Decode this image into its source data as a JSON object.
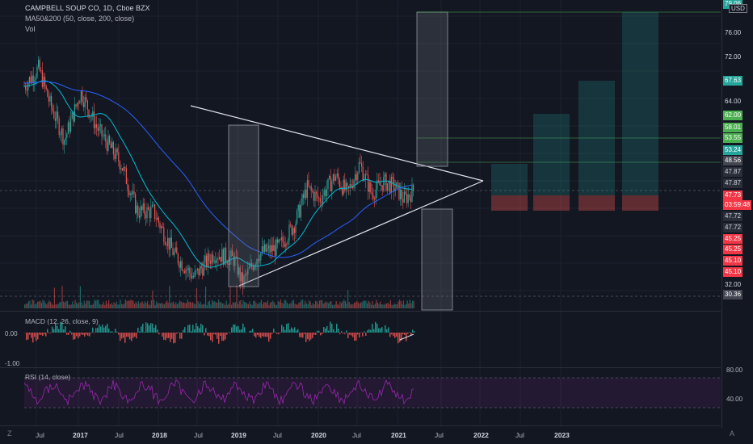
{
  "chart_header": {
    "symbol_line": "CAMPBELL SOUP CO, 1D, Cboe BZX",
    "ma_line": "MA50&200 (50, close, 200, close)",
    "vol_line": "Vol"
  },
  "currency": "USD",
  "price_axis": {
    "labels": [
      {
        "text": "79.06",
        "style": "green"
      },
      {
        "text": "76.00",
        "style": "plain"
      },
      {
        "text": "72.00",
        "style": "plain"
      },
      {
        "text": "67.63",
        "style": "green"
      },
      {
        "text": "64.00",
        "style": "plain"
      },
      {
        "text": "62.00",
        "style": "brightgreen"
      },
      {
        "text": "58.01",
        "style": "brightgreen"
      },
      {
        "text": "53.55",
        "style": "brightgreen"
      },
      {
        "text": "53.24",
        "style": "green"
      },
      {
        "text": "48.56",
        "style": "gray"
      },
      {
        "text": "47.87",
        "style": "dark"
      },
      {
        "text": "47.87",
        "style": "dark"
      },
      {
        "text": "47.73",
        "style": "red"
      },
      {
        "text": "03:59:48",
        "style": "red"
      },
      {
        "text": "47.72",
        "style": "dark"
      },
      {
        "text": "47.72",
        "style": "dark"
      },
      {
        "text": "45.25",
        "style": "red"
      },
      {
        "text": "45.25",
        "style": "red"
      },
      {
        "text": "45.10",
        "style": "red"
      },
      {
        "text": "45.10",
        "style": "red"
      },
      {
        "text": "32.00",
        "style": "plain"
      },
      {
        "text": "30.36",
        "style": "gray"
      }
    ]
  },
  "macd": {
    "legend": "MACD (12, 26, close, 9)",
    "axis_labels": [
      "0.00",
      "-1.00"
    ]
  },
  "rsi": {
    "legend": "RSI (14, close)",
    "axis_labels": [
      "80.00",
      "40.00"
    ]
  },
  "time_axis": {
    "labels": [
      {
        "text": "Jul",
        "bold": false
      },
      {
        "text": "2017",
        "bold": true
      },
      {
        "text": "Jul",
        "bold": false
      },
      {
        "text": "2018",
        "bold": true
      },
      {
        "text": "Jul",
        "bold": false
      },
      {
        "text": "2019",
        "bold": true
      },
      {
        "text": "Jul",
        "bold": false
      },
      {
        "text": "2020",
        "bold": true
      },
      {
        "text": "Jul",
        "bold": false
      },
      {
        "text": "2021",
        "bold": true
      },
      {
        "text": "Jul",
        "bold": false
      },
      {
        "text": "2022",
        "bold": true
      },
      {
        "text": "Jul",
        "bold": false
      },
      {
        "text": "2023",
        "bold": true
      }
    ]
  },
  "corner_labels": {
    "left": "Z",
    "right": "A"
  },
  "chart_data": {
    "type": "line",
    "title": "CAMPBELL SOUP CO, 1D, Cboe BZX",
    "price_ylim": [
      29,
      81
    ],
    "x": [
      "2016-07",
      "2017-01",
      "2017-07",
      "2018-01",
      "2018-07",
      "2019-01",
      "2019-07",
      "2020-01",
      "2020-07",
      "2021-01"
    ],
    "series": [
      {
        "values": [
          64,
          60,
          52,
          43,
          35,
          34,
          40,
          49,
          51,
          48
        ]
      }
    ],
    "colors": {
      "up": "#26a69a",
      "down": "#ef5350",
      "ma50": "#00bcd4",
      "ma200": "#2962ff",
      "rsi": "#9c27b0",
      "projection_target": "#26a69a",
      "projection_stop": "#ef5350"
    }
  }
}
